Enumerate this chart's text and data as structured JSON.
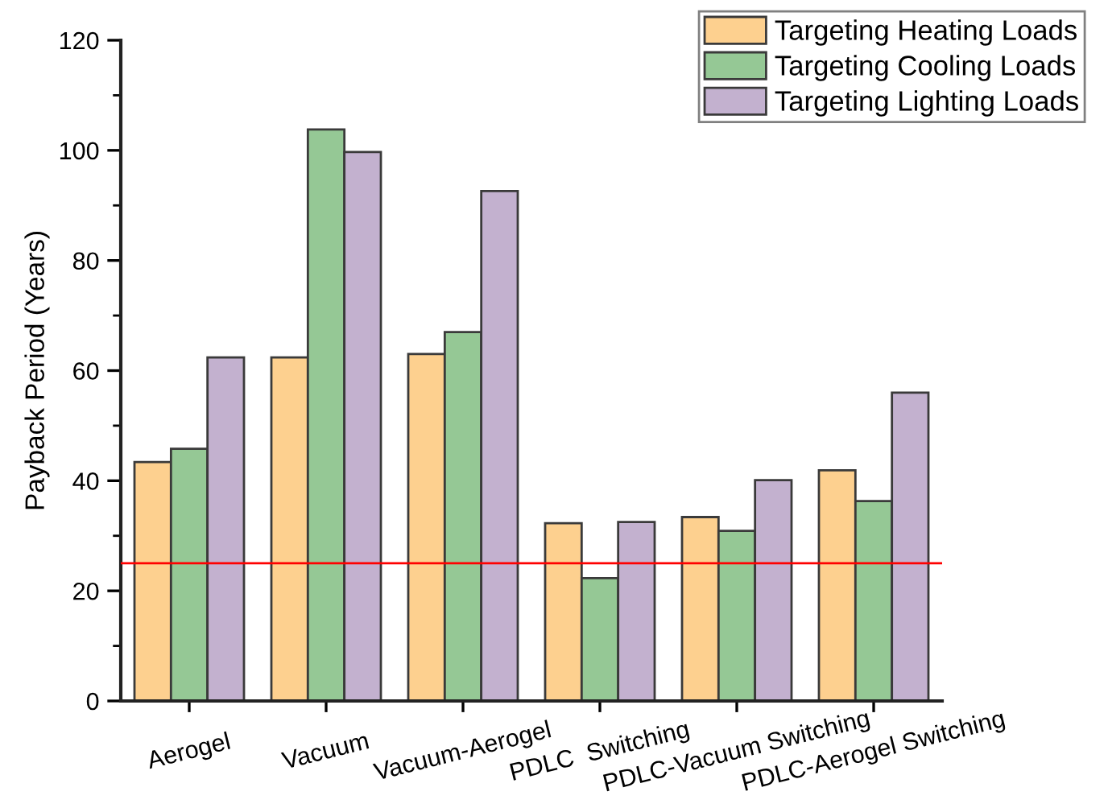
{
  "chart_data": {
    "type": "bar",
    "ylabel": "Payback Period (Years)",
    "categories": [
      "Aerogel",
      "Vacuum",
      "Vacuum-Aerogel",
      "PDLC  Switching",
      "PDLC-Vacuum Switching",
      "PDLC-Aerogel Switching"
    ],
    "series": [
      {
        "name": "Targeting Heating Loads",
        "color": "#fdd08f",
        "values": [
          43.4,
          62.4,
          63.0,
          32.3,
          33.4,
          41.9
        ]
      },
      {
        "name": "Targeting Cooling Loads",
        "color": "#95c895",
        "values": [
          45.8,
          103.8,
          67.0,
          22.3,
          30.9,
          36.3
        ]
      },
      {
        "name": "Targeting Lighting Loads",
        "color": "#c3b1cf",
        "values": [
          62.4,
          99.7,
          92.6,
          32.5,
          40.1,
          56.0
        ]
      }
    ],
    "ylim": [
      0,
      120
    ],
    "yticks": [
      0,
      20,
      40,
      60,
      80,
      100,
      120
    ],
    "ref_lines": [
      {
        "axis": "y",
        "value": 25,
        "color": "#ff0000"
      }
    ],
    "grid": false,
    "legend": "top right"
  }
}
